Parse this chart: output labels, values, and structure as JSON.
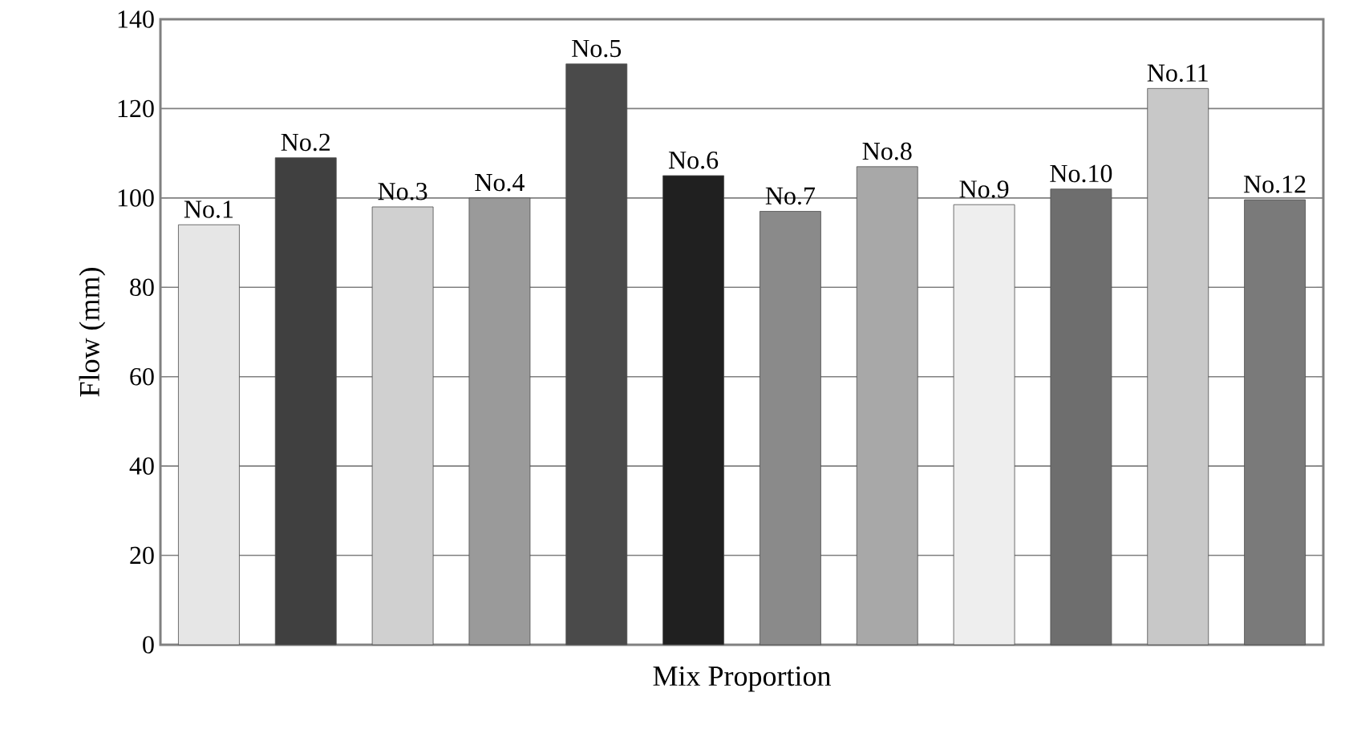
{
  "chart_data": {
    "type": "bar",
    "xlabel": "Mix Proportion",
    "ylabel": "Flow (mm)",
    "categories": [
      "No.1",
      "No.2",
      "No.3",
      "No.4",
      "No.5",
      "No.6",
      "No.7",
      "No.8",
      "No.9",
      "No.10",
      "No.11",
      "No.12"
    ],
    "values": [
      94,
      109,
      98,
      100,
      130,
      105,
      97,
      107,
      98.5,
      102,
      124.5,
      99.6
    ],
    "colors": [
      "#e6e6e6",
      "#404040",
      "#d0d0d0",
      "#9a9a9a",
      "#4a4a4a",
      "#202020",
      "#8a8a8a",
      "#a8a8a8",
      "#eeeeee",
      "#6e6e6e",
      "#c8c8c8",
      "#7a7a7a"
    ],
    "ylim": [
      0,
      140
    ],
    "yticks": [
      0,
      20,
      40,
      60,
      80,
      100,
      120,
      140
    ],
    "grid": "y"
  }
}
